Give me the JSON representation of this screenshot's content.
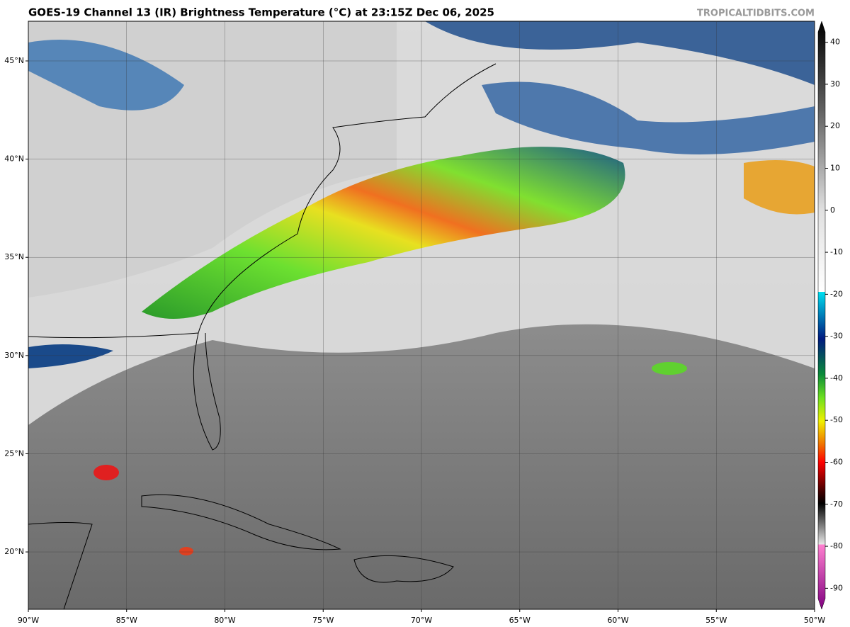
{
  "header": {
    "title": "GOES-19 Channel 13 (IR) Brightness Temperature (°C) at 23:15Z Dec 06, 2025",
    "watermark": "TROPICALTIDBITS.COM"
  },
  "map": {
    "xlim": [
      -90,
      -50
    ],
    "ylim": [
      17.08,
      47.02
    ],
    "xticks": [
      {
        "value": -90,
        "label": "90°W"
      },
      {
        "value": -85,
        "label": "85°W"
      },
      {
        "value": -80,
        "label": "80°W"
      },
      {
        "value": -75,
        "label": "75°W"
      },
      {
        "value": -70,
        "label": "70°W"
      },
      {
        "value": -65,
        "label": "65°W"
      },
      {
        "value": -60,
        "label": "60°W"
      },
      {
        "value": -55,
        "label": "55°W"
      },
      {
        "value": -50,
        "label": "50°W"
      }
    ],
    "yticks": [
      {
        "value": 20,
        "label": "20°N"
      },
      {
        "value": 25,
        "label": "25°N"
      },
      {
        "value": 30,
        "label": "30°N"
      },
      {
        "value": 35,
        "label": "35°N"
      },
      {
        "value": 40,
        "label": "40°N"
      },
      {
        "value": 45,
        "label": "45°N"
      }
    ]
  },
  "colorbar": {
    "lim": [
      -95,
      45
    ],
    "ticks": [
      40,
      30,
      20,
      10,
      0,
      -10,
      -20,
      -30,
      -40,
      -50,
      -60,
      -70,
      -80,
      -90
    ]
  }
}
